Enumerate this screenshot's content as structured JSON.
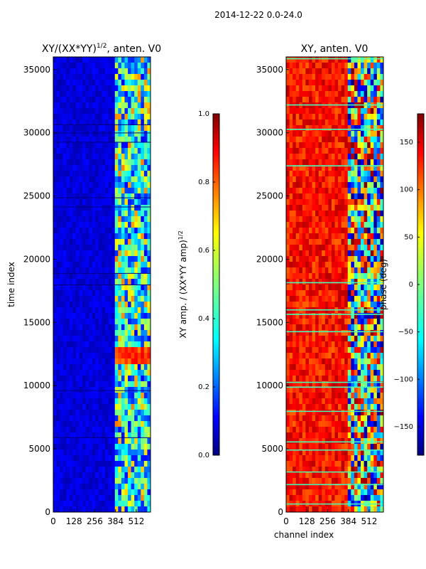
{
  "suptitle": "2014-12-22 0.0-24.0",
  "colors": {
    "jet": [
      "#00007f",
      "#0000ff",
      "#007fff",
      "#00ffff",
      "#7fff7f",
      "#ffff00",
      "#ff7f00",
      "#ff0000",
      "#7f0000"
    ],
    "background_dark": "#00007f",
    "axes_edge": "#000000",
    "horizontal_stripe": "#7fff7f"
  },
  "chart_data": [
    {
      "id": "amp",
      "type": "heatmap",
      "title_main": "XY/(XX*YY)",
      "title_exp": "1/2",
      "title_suffix": ", anten. V0",
      "xlabel": "",
      "ylabel": "time index",
      "xticks": [
        0,
        128,
        256,
        384,
        512
      ],
      "xtick_labels": [
        "0",
        "128",
        "256",
        "384",
        "512"
      ],
      "xlim": [
        0,
        600
      ],
      "yticks": [
        0,
        5000,
        10000,
        15000,
        20000,
        25000,
        30000,
        35000
      ],
      "ytick_labels": [
        "0",
        "5000",
        "10000",
        "15000",
        "20000",
        "25000",
        "30000",
        "35000"
      ],
      "ylim": [
        0,
        36000
      ],
      "colorbar": {
        "label_main": "XY amp. / (XX*YY amp)",
        "label_exp": "1/2",
        "range": [
          0.0,
          1.0
        ],
        "ticks": [
          0.0,
          0.2,
          0.4,
          0.6,
          0.8,
          1.0
        ],
        "tick_labels": [
          "0.0",
          "0.2",
          "0.4",
          "0.6",
          "0.8",
          "1.0"
        ]
      },
      "features": {
        "background_value": 0.05,
        "high_activity_channels": [
          384,
          600
        ],
        "hot_time_range": [
          11500,
          13000
        ],
        "hot_value": 0.9
      }
    },
    {
      "id": "phase",
      "type": "heatmap",
      "title_main": "XY, anten. V0",
      "title_exp": "",
      "title_suffix": "",
      "xlabel": "channel index",
      "ylabel": "",
      "xticks": [
        0,
        128,
        256,
        384,
        512
      ],
      "xtick_labels": [
        "0",
        "128",
        "256",
        "384",
        "512"
      ],
      "xlim": [
        0,
        600
      ],
      "yticks": [
        0,
        5000,
        10000,
        15000,
        20000,
        25000,
        30000,
        35000
      ],
      "ytick_labels": [
        "0",
        "5000",
        "10000",
        "15000",
        "20000",
        "25000",
        "30000",
        "35000"
      ],
      "ylim": [
        0,
        36000
      ],
      "colorbar": {
        "label_main": "phase (deg)",
        "label_exp": "",
        "range": [
          -180,
          180
        ],
        "ticks": [
          -150,
          -100,
          -50,
          0,
          50,
          100,
          150
        ],
        "tick_labels": [
          "−150",
          "−100",
          "−50",
          "0",
          "50",
          "100",
          "150"
        ]
      },
      "features": {
        "dominant_phase_deg": 130,
        "variable_channels": [
          384,
          600
        ],
        "stripe_phase_deg": -20
      }
    }
  ]
}
